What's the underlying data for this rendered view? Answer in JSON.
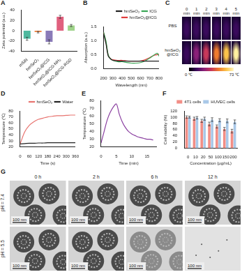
{
  "chart_data": [
    {
      "panel": "A",
      "type": "bar",
      "categories": [
        "mSiN",
        "hmSeO₂",
        "hmSeO₂@ICG",
        "hmSeO₂@ICG-NH₂",
        "hmSeO₂@ICG-RGD"
      ],
      "values": [
        -16,
        -3,
        -22,
        27,
        10
      ],
      "errors": [
        3,
        1.5,
        4,
        3,
        2
      ],
      "colors": [
        "#4fb99f",
        "#f08a4b",
        "#8a7bb8",
        "#e0607e",
        "#9fd38a"
      ],
      "y_label": "Zeta potential (a.u.)",
      "ylim": [
        -40,
        40
      ],
      "yticks": [
        -40,
        -20,
        0,
        20,
        40
      ],
      "grid": false
    },
    {
      "panel": "B",
      "type": "line",
      "x_label": "Wavelength (nm)",
      "y_label": "Absorption (a.u.)",
      "x": [
        200,
        225,
        250,
        275,
        300,
        350,
        400,
        450,
        500,
        550,
        600,
        650,
        700,
        750,
        780,
        800
      ],
      "series": [
        {
          "name": "hmSeO₂",
          "color": "#222222",
          "values": [
            1.25,
            0.9,
            0.45,
            0.35,
            0.3,
            0.28,
            0.27,
            0.27,
            0.27,
            0.27,
            0.27,
            0.27,
            0.27,
            0.27,
            0.27,
            0.27
          ]
        },
        {
          "name": "ICG",
          "color": "#3aa655",
          "values": [
            1.3,
            1.0,
            0.5,
            0.35,
            0.3,
            0.25,
            0.25,
            0.22,
            0.2,
            0.2,
            0.22,
            0.28,
            0.38,
            0.5,
            0.55,
            0.45
          ]
        },
        {
          "name": "hmSeO₂@ICG",
          "color": "#e03c3c",
          "values": [
            1.28,
            0.95,
            0.48,
            0.36,
            0.32,
            0.3,
            0.3,
            0.28,
            0.27,
            0.27,
            0.28,
            0.32,
            0.4,
            0.48,
            0.5,
            0.52
          ]
        }
      ],
      "xlim": [
        200,
        800
      ],
      "xticks": [
        200,
        300,
        400,
        500,
        600,
        700,
        800
      ],
      "ylim": [
        0,
        1.5
      ],
      "yticks": [
        {
          "value": 0,
          "label": "0.0"
        },
        0.5,
        {
          "value": 1,
          "label": "1.0"
        },
        1.5
      ],
      "legend": "top",
      "grid": false
    },
    {
      "panel": "D",
      "type": "line",
      "x_label": "Time (s)",
      "y_label": "Temperature (℃)",
      "x": [
        0,
        30,
        60,
        90,
        120,
        150,
        180,
        210,
        240,
        270,
        300,
        330,
        360
      ],
      "series": [
        {
          "name": "hmSeO₂",
          "color": "#e8736f",
          "values": [
            25,
            45,
            56,
            62,
            66,
            68,
            70,
            71,
            72,
            72,
            72.5,
            73,
            73
          ]
        },
        {
          "name": "Water",
          "color": "#222222",
          "values": [
            25,
            25.5,
            26,
            26,
            26.5,
            26.5,
            27,
            27,
            27,
            27,
            27,
            27,
            27
          ]
        }
      ],
      "xlim": [
        0,
        360
      ],
      "xticks": [
        0,
        60,
        120,
        180,
        240,
        300,
        360
      ],
      "ylim": [
        20,
        80
      ],
      "yticks": [
        20,
        30,
        40,
        50,
        60,
        70,
        80
      ],
      "legend": "top",
      "grid": false
    },
    {
      "panel": "E",
      "type": "line",
      "x_label": "Time (min)",
      "y_label": "Temperature (℃)",
      "x": [
        0,
        1,
        2,
        3,
        4,
        5,
        6,
        7,
        8,
        9,
        10,
        11,
        12,
        13,
        14,
        15,
        16,
        17
      ],
      "values": [
        25,
        40,
        55,
        65,
        72,
        76,
        62,
        52,
        45,
        40,
        37,
        35,
        33,
        32,
        31,
        30,
        30,
        29
      ],
      "color": "#8a3fa0",
      "xlim": [
        0,
        18
      ],
      "xticks": [
        0,
        5,
        10,
        15
      ],
      "ylim": [
        20,
        80
      ],
      "yticks": [
        20,
        30,
        40,
        50,
        60,
        70,
        80
      ],
      "grid": false
    },
    {
      "panel": "F",
      "type": "bar",
      "x_label": "Concentration (μg/mL)",
      "y_label": "Cell viability (%)",
      "categories": [
        "0",
        "10",
        "20",
        "50",
        "100",
        "150",
        "200"
      ],
      "series": [
        {
          "name": "4T1 cells",
          "color": "#f28e86",
          "values": [
            100,
            95,
            88,
            78,
            70,
            62,
            55
          ],
          "errors": [
            4,
            5,
            5,
            6,
            5,
            5,
            6
          ]
        },
        {
          "name": "HUVEC cells",
          "color": "#a9c8e8",
          "values": [
            100,
            98,
            95,
            92,
            90,
            88,
            85
          ],
          "errors": [
            3,
            4,
            5,
            6,
            5,
            6,
            6
          ]
        }
      ],
      "ylim": [
        0,
        120
      ],
      "yticks": [
        0,
        20,
        40,
        60,
        80,
        100,
        120
      ],
      "legend": "top",
      "grid": false
    }
  ],
  "thermal_images": {
    "panel": "C",
    "rows": [
      "PBS",
      "hmSeO₂@ICG"
    ],
    "columns": [
      "0 min",
      "1 min",
      "2 min",
      "3 min",
      "4 min",
      "5 min"
    ],
    "colorbar_labels": [
      "0 ℃",
      "73 ℃"
    ]
  },
  "tem_images": {
    "panel": "G",
    "rows": [
      "pH = 7.4",
      "pH = 5.5"
    ],
    "columns": [
      "0 h",
      "2 h",
      "6 h",
      "12 h"
    ],
    "scale_bar": "100 nm"
  }
}
